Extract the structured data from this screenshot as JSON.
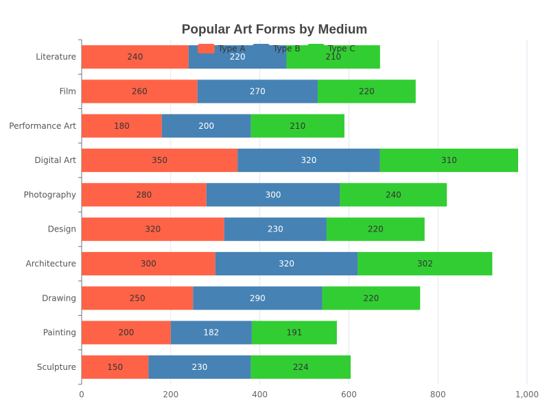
{
  "chart_data": {
    "type": "bar",
    "orientation": "horizontal",
    "stacked": true,
    "title": "Popular Art Forms by Medium",
    "xlabel": "",
    "ylabel": "",
    "xlim": [
      0,
      1000
    ],
    "x_ticks": [
      "0",
      "200",
      "400",
      "600",
      "800",
      "1,000"
    ],
    "grid": true,
    "legend_position": "top-center",
    "categories": [
      "Literature",
      "Film",
      "Performance Art",
      "Digital Art",
      "Photography",
      "Design",
      "Architecture",
      "Drawing",
      "Painting",
      "Sculpture"
    ],
    "series": [
      {
        "name": "Type A",
        "color": "#ff6347",
        "label_color": "#333333",
        "values": [
          240,
          260,
          180,
          350,
          280,
          320,
          300,
          250,
          200,
          150
        ]
      },
      {
        "name": "Type B",
        "color": "#4682b4",
        "label_color": "#ffffff",
        "values": [
          220,
          270,
          200,
          320,
          300,
          230,
          320,
          290,
          182,
          230
        ]
      },
      {
        "name": "Type C",
        "color": "#32cd32",
        "label_color": "#333333",
        "values": [
          210,
          220,
          210,
          310,
          240,
          220,
          302,
          220,
          191,
          224
        ]
      }
    ]
  }
}
